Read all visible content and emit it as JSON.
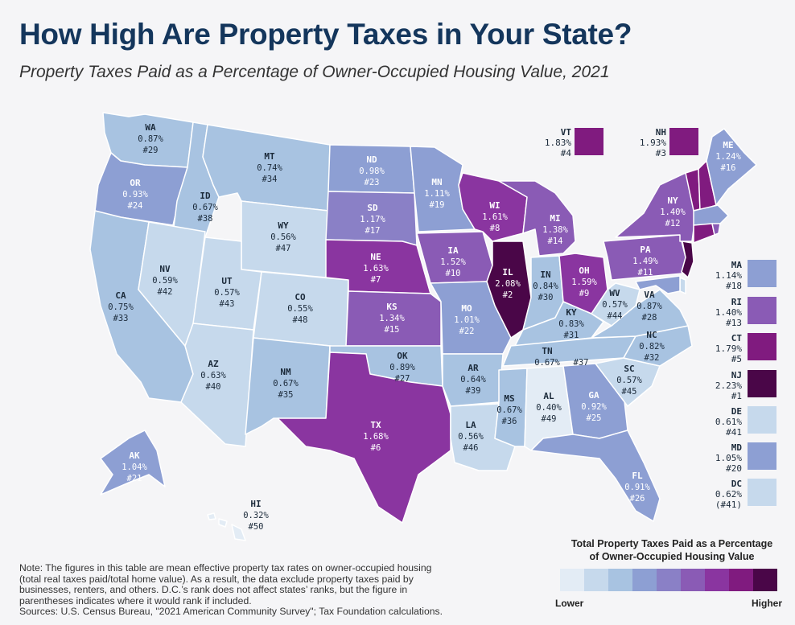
{
  "title": "How High Are Property Taxes in Your State?",
  "subtitle": "Property Taxes Paid as a Percentage of Owner-Occupied Housing Value, 2021",
  "colors": {
    "c1": "#e3ecf5",
    "c2": "#c6d9ec",
    "c3": "#a8c3e1",
    "c4": "#8d9fd3",
    "c5": "#8a80c6",
    "c6": "#8a5bb5",
    "c7": "#8a35a0",
    "c8": "#801b7f",
    "c9": "#4a0648"
  },
  "states": {
    "WA": {
      "name": "WA",
      "rate": "0.87%",
      "rank": "#29"
    },
    "OR": {
      "name": "OR",
      "rate": "0.93%",
      "rank": "#24"
    },
    "CA": {
      "name": "CA",
      "rate": "0.75%",
      "rank": "#33"
    },
    "ID": {
      "name": "ID",
      "rate": "0.67%",
      "rank": "#38"
    },
    "NV": {
      "name": "NV",
      "rate": "0.59%",
      "rank": "#42"
    },
    "MT": {
      "name": "MT",
      "rate": "0.74%",
      "rank": "#34"
    },
    "WY": {
      "name": "WY",
      "rate": "0.56%",
      "rank": "#47"
    },
    "UT": {
      "name": "UT",
      "rate": "0.57%",
      "rank": "#43"
    },
    "AZ": {
      "name": "AZ",
      "rate": "0.63%",
      "rank": "#40"
    },
    "CO": {
      "name": "CO",
      "rate": "0.55%",
      "rank": "#48"
    },
    "NM": {
      "name": "NM",
      "rate": "0.67%",
      "rank": "#35"
    },
    "ND": {
      "name": "ND",
      "rate": "0.98%",
      "rank": "#23"
    },
    "SD": {
      "name": "SD",
      "rate": "1.17%",
      "rank": "#17"
    },
    "NE": {
      "name": "NE",
      "rate": "1.63%",
      "rank": "#7"
    },
    "KS": {
      "name": "KS",
      "rate": "1.34%",
      "rank": "#15"
    },
    "OK": {
      "name": "OK",
      "rate": "0.89%",
      "rank": "#27"
    },
    "TX": {
      "name": "TX",
      "rate": "1.68%",
      "rank": "#6"
    },
    "MN": {
      "name": "MN",
      "rate": "1.11%",
      "rank": "#19"
    },
    "IA": {
      "name": "IA",
      "rate": "1.52%",
      "rank": "#10"
    },
    "MO": {
      "name": "MO",
      "rate": "1.01%",
      "rank": "#22"
    },
    "AR": {
      "name": "AR",
      "rate": "0.64%",
      "rank": "#39"
    },
    "LA": {
      "name": "LA",
      "rate": "0.56%",
      "rank": "#46"
    },
    "WI": {
      "name": "WI",
      "rate": "1.61%",
      "rank": "#8"
    },
    "IL": {
      "name": "IL",
      "rate": "2.08%",
      "rank": "#2"
    },
    "MI": {
      "name": "MI",
      "rate": "1.38%",
      "rank": "#14"
    },
    "IN": {
      "name": "IN",
      "rate": "0.84%",
      "rank": "#30"
    },
    "OH": {
      "name": "OH",
      "rate": "1.59%",
      "rank": "#9"
    },
    "KY": {
      "name": "KY",
      "rate": "0.83%",
      "rank": "#31"
    },
    "TN": {
      "name": "TN",
      "rate": "0.67%",
      "rank": "#37"
    },
    "MS": {
      "name": "MS",
      "rate": "0.67%",
      "rank": "#36"
    },
    "AL": {
      "name": "AL",
      "rate": "0.40%",
      "rank": "#49"
    },
    "GA": {
      "name": "GA",
      "rate": "0.92%",
      "rank": "#25"
    },
    "FL": {
      "name": "FL",
      "rate": "0.91%",
      "rank": "#26"
    },
    "SC": {
      "name": "SC",
      "rate": "0.57%",
      "rank": "#45"
    },
    "NC": {
      "name": "NC",
      "rate": "0.82%",
      "rank": "#32"
    },
    "VA": {
      "name": "VA",
      "rate": "0.87%",
      "rank": "#28"
    },
    "WV": {
      "name": "WV",
      "rate": "0.57%",
      "rank": "#44"
    },
    "PA": {
      "name": "PA",
      "rate": "1.49%",
      "rank": "#11"
    },
    "NY": {
      "name": "NY",
      "rate": "1.40%",
      "rank": "#12"
    },
    "ME": {
      "name": "ME",
      "rate": "1.24%",
      "rank": "#16"
    },
    "AK": {
      "name": "AK",
      "rate": "1.04%",
      "rank": "#21"
    },
    "HI": {
      "name": "HI",
      "rate": "0.32%",
      "rank": "#50"
    }
  },
  "boxes": {
    "VT": {
      "name": "VT",
      "rate": "1.83%",
      "rank": "#4"
    },
    "NH": {
      "name": "NH",
      "rate": "1.93%",
      "rank": "#3"
    },
    "MA": {
      "name": "MA",
      "rate": "1.14%",
      "rank": "#18"
    },
    "RI": {
      "name": "RI",
      "rate": "1.40%",
      "rank": "#13"
    },
    "CT": {
      "name": "CT",
      "rate": "1.79%",
      "rank": "#5"
    },
    "NJ": {
      "name": "NJ",
      "rate": "2.23%",
      "rank": "#1"
    },
    "DE": {
      "name": "DE",
      "rate": "0.61%",
      "rank": "#41"
    },
    "MD": {
      "name": "MD",
      "rate": "1.05%",
      "rank": "#20"
    },
    "DC": {
      "name": "DC",
      "rate": "0.62%",
      "rank": "(#41)"
    }
  },
  "legend": {
    "title_line1": "Total Property Taxes Paid as a Percentage",
    "title_line2": "of Owner-Occupied Housing Value",
    "low": "Lower",
    "high": "Higher"
  },
  "note": {
    "line1": "Note: The figures in this table are mean effective property tax rates on owner-occupied housing",
    "line2": "(total real taxes paid/total home value). As a result, the data exclude property taxes paid by",
    "line3": "businesses, renters, and others. D.C.’s rank does not affect states’ ranks, but the figure in",
    "line4": "parentheses indicates where it would rank if included.",
    "line5": "Sources: U.S. Census Bureau, \"2021 American Community Survey\"; Tax Foundation calculations."
  }
}
